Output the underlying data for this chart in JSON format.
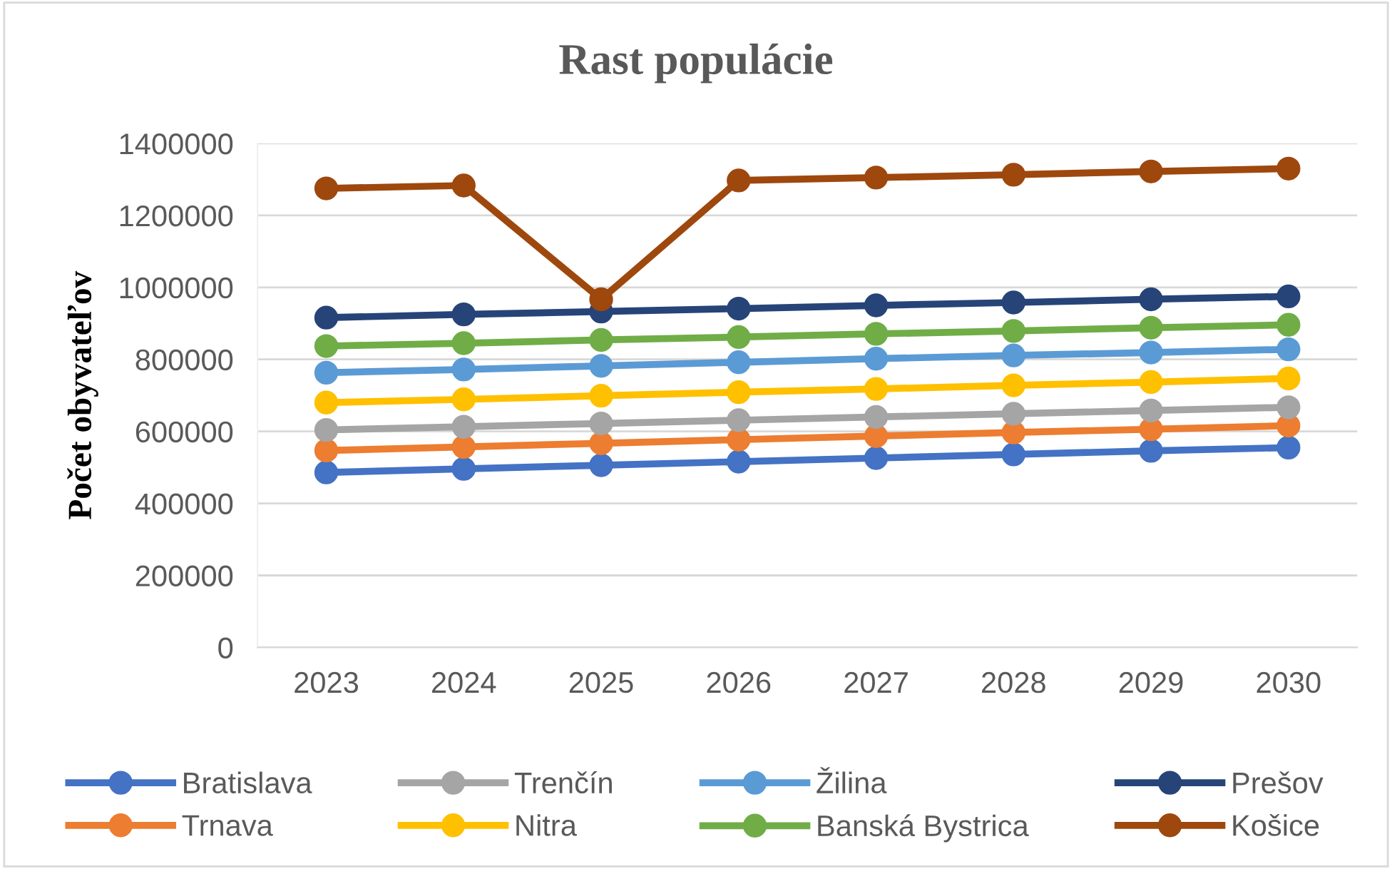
{
  "chart_data": {
    "type": "line",
    "title": "Rast populácie",
    "ylabel": "Počet obyvateľov",
    "categories": [
      "2023",
      "2024",
      "2025",
      "2026",
      "2027",
      "2028",
      "2029",
      "2030"
    ],
    "series": [
      {
        "name": "Bratislava",
        "color": "#4472c4",
        "values": [
          486000,
          496000,
          506000,
          516000,
          526000,
          536000,
          546000,
          555000
        ]
      },
      {
        "name": "Trnava",
        "color": "#ed7d31",
        "values": [
          547000,
          557000,
          567000,
          577000,
          587000,
          597000,
          606000,
          616000
        ]
      },
      {
        "name": "Trenčín",
        "color": "#a5a5a5",
        "values": [
          604000,
          613000,
          622000,
          631000,
          640000,
          649000,
          658000,
          667000
        ]
      },
      {
        "name": "Nitra",
        "color": "#ffc000",
        "values": [
          680000,
          689000,
          699000,
          709000,
          718000,
          728000,
          737000,
          747000
        ]
      },
      {
        "name": "Žilina",
        "color": "#5b9bd5",
        "values": [
          763000,
          772000,
          782000,
          792000,
          802000,
          811000,
          819000,
          828000
        ]
      },
      {
        "name": "Banská Bystrica",
        "color": "#70ad47",
        "values": [
          837000,
          845000,
          854000,
          862000,
          871000,
          879000,
          888000,
          896000
        ]
      },
      {
        "name": "Prešov",
        "color": "#264478",
        "values": [
          916000,
          925000,
          933000,
          941000,
          950000,
          958000,
          967000,
          975000
        ]
      },
      {
        "name": "Košice",
        "color": "#9e480e",
        "values": [
          1275000,
          1283000,
          967000,
          1297000,
          1305000,
          1313000,
          1322000,
          1330000
        ]
      }
    ],
    "ylim": [
      0,
      1400000
    ],
    "yticks": [
      0,
      200000,
      400000,
      600000,
      800000,
      1000000,
      1200000,
      1400000
    ],
    "grid": "y",
    "legend": "bottom",
    "marker": "circle",
    "line_style": "solid"
  }
}
